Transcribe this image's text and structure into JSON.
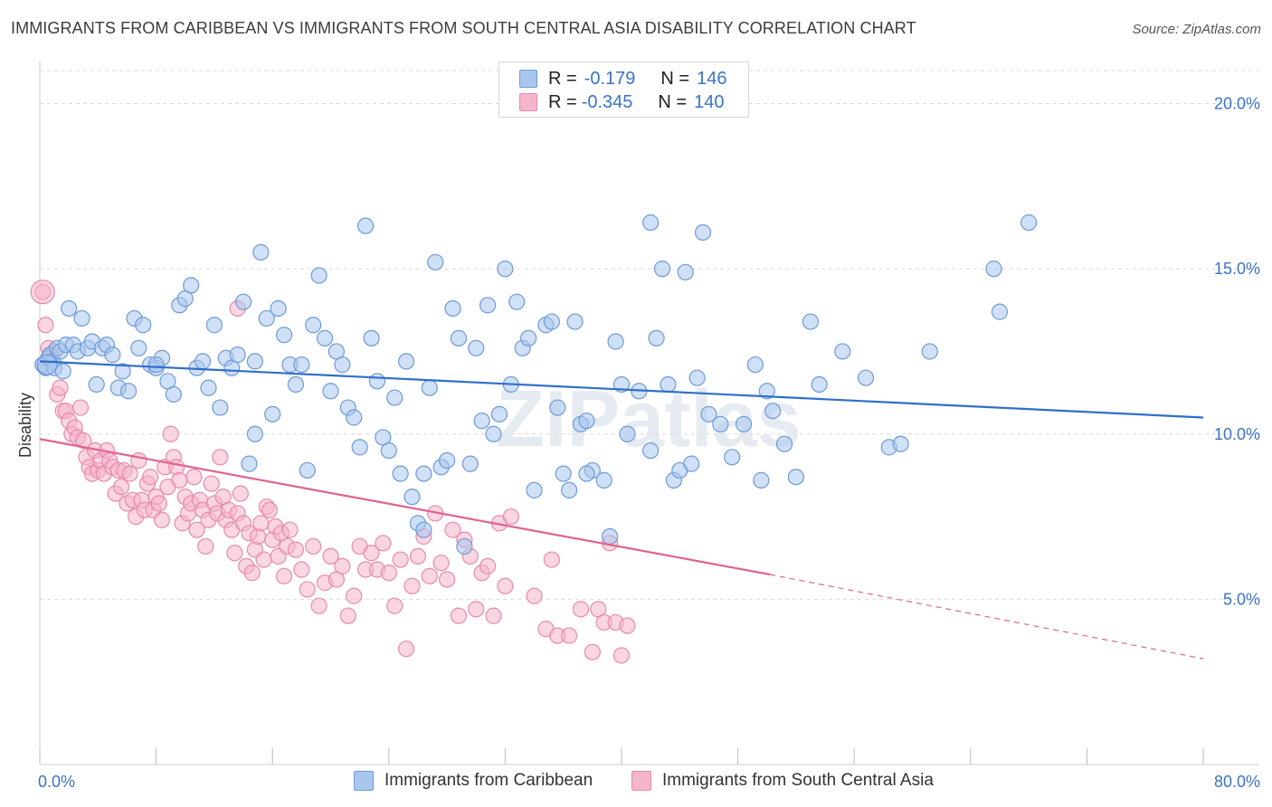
{
  "title": "IMMIGRANTS FROM CARIBBEAN VS IMMIGRANTS FROM SOUTH CENTRAL ASIA DISABILITY CORRELATION CHART",
  "source": "Source: ZipAtlas.com",
  "watermark": "ZIPatlas",
  "legend": {
    "rows": [
      {
        "r_label": "R =",
        "r_value": "-0.179",
        "n_label": "N =",
        "n_value": "146"
      },
      {
        "r_label": "R =",
        "r_value": "-0.345",
        "n_label": "N =",
        "n_value": "140"
      }
    ]
  },
  "bottom_legend": [
    "Immigrants from Caribbean",
    "Immigrants from South Central Asia"
  ],
  "colors": {
    "blue_fill": "#a9c7ee",
    "blue_stroke": "#6d9bd8",
    "blue_line": "#2f6fcb",
    "pink_fill": "#f5b5ca",
    "pink_stroke": "#e88aaa",
    "pink_line": "#e06390",
    "axis_text": "#3a72c9",
    "grid": "#d9d9d9"
  },
  "chart_data": {
    "type": "scatter",
    "title": "IMMIGRANTS FROM CARIBBEAN VS IMMIGRANTS FROM SOUTH CENTRAL ASIA DISABILITY CORRELATION CHART",
    "xlabel": "",
    "ylabel": "Disability",
    "xlim": [
      0,
      80
    ],
    "ylim": [
      0,
      21
    ],
    "x_tick_labels": [
      "0.0%",
      "80.0%"
    ],
    "y_ticks": [
      5,
      10,
      15,
      20
    ],
    "y_tick_labels": [
      "5.0%",
      "10.0%",
      "15.0%",
      "20.0%"
    ],
    "grid": true,
    "series": [
      {
        "name": "Immigrants from Caribbean",
        "r": -0.179,
        "n": 146,
        "trend": {
          "x0": 0,
          "y0": 12.2,
          "x1": 80,
          "y1": 10.5
        },
        "points": [
          [
            0.2,
            12.1
          ],
          [
            0.4,
            12.0
          ],
          [
            0.6,
            12.3
          ],
          [
            0.7,
            12.4
          ],
          [
            0.9,
            12.2
          ],
          [
            1.0,
            12.0
          ],
          [
            1.2,
            12.6
          ],
          [
            1.4,
            12.5
          ],
          [
            1.6,
            11.9
          ],
          [
            1.8,
            12.7
          ],
          [
            2.0,
            13.8
          ],
          [
            2.3,
            12.7
          ],
          [
            2.6,
            12.5
          ],
          [
            2.9,
            13.5
          ],
          [
            3.3,
            12.6
          ],
          [
            3.6,
            12.8
          ],
          [
            3.9,
            11.5
          ],
          [
            4.3,
            12.6
          ],
          [
            4.6,
            12.7
          ],
          [
            5.0,
            12.4
          ],
          [
            5.4,
            11.4
          ],
          [
            5.7,
            11.9
          ],
          [
            6.1,
            11.3
          ],
          [
            6.5,
            13.5
          ],
          [
            6.8,
            12.6
          ],
          [
            7.1,
            13.3
          ],
          [
            7.6,
            12.1
          ],
          [
            8.0,
            12.0
          ],
          [
            8.4,
            12.3
          ],
          [
            8.8,
            11.6
          ],
          [
            9.2,
            11.2
          ],
          [
            9.6,
            13.9
          ],
          [
            10.0,
            14.1
          ],
          [
            10.4,
            14.5
          ],
          [
            10.8,
            12.0
          ],
          [
            11.2,
            12.2
          ],
          [
            11.6,
            11.4
          ],
          [
            12.0,
            13.3
          ],
          [
            12.4,
            10.8
          ],
          [
            12.8,
            12.3
          ],
          [
            13.2,
            12.0
          ],
          [
            13.6,
            12.4
          ],
          [
            14.0,
            14.0
          ],
          [
            14.4,
            9.1
          ],
          [
            14.8,
            10.0
          ],
          [
            15.2,
            15.5
          ],
          [
            15.6,
            13.5
          ],
          [
            16.0,
            10.6
          ],
          [
            16.4,
            13.8
          ],
          [
            16.8,
            13.0
          ],
          [
            17.2,
            12.1
          ],
          [
            17.6,
            11.5
          ],
          [
            18.0,
            12.1
          ],
          [
            18.4,
            8.9
          ],
          [
            18.8,
            13.3
          ],
          [
            19.2,
            14.8
          ],
          [
            19.6,
            12.9
          ],
          [
            20.0,
            11.3
          ],
          [
            20.4,
            12.5
          ],
          [
            20.8,
            12.1
          ],
          [
            21.2,
            10.8
          ],
          [
            21.6,
            10.5
          ],
          [
            22.0,
            9.6
          ],
          [
            22.4,
            16.3
          ],
          [
            22.8,
            12.9
          ],
          [
            23.2,
            11.6
          ],
          [
            23.6,
            9.9
          ],
          [
            24.0,
            9.5
          ],
          [
            24.4,
            11.1
          ],
          [
            24.8,
            8.8
          ],
          [
            25.2,
            12.2
          ],
          [
            25.6,
            8.1
          ],
          [
            26.0,
            7.3
          ],
          [
            26.4,
            7.1
          ],
          [
            26.8,
            11.4
          ],
          [
            27.2,
            15.2
          ],
          [
            27.6,
            9.0
          ],
          [
            28.0,
            9.2
          ],
          [
            28.4,
            13.8
          ],
          [
            28.8,
            12.9
          ],
          [
            29.2,
            6.6
          ],
          [
            29.6,
            9.1
          ],
          [
            30.0,
            12.6
          ],
          [
            30.4,
            10.4
          ],
          [
            30.8,
            13.9
          ],
          [
            31.2,
            10.0
          ],
          [
            31.6,
            10.6
          ],
          [
            32.0,
            15.0
          ],
          [
            32.4,
            11.5
          ],
          [
            32.8,
            14.0
          ],
          [
            33.2,
            12.6
          ],
          [
            33.6,
            12.9
          ],
          [
            34.0,
            8.3
          ],
          [
            34.8,
            13.3
          ],
          [
            35.2,
            13.4
          ],
          [
            35.6,
            10.8
          ],
          [
            36.0,
            8.8
          ],
          [
            36.4,
            8.3
          ],
          [
            36.8,
            13.4
          ],
          [
            37.2,
            10.3
          ],
          [
            37.6,
            10.4
          ],
          [
            38.0,
            8.9
          ],
          [
            38.8,
            8.6
          ],
          [
            39.2,
            6.9
          ],
          [
            39.6,
            12.8
          ],
          [
            40.0,
            11.5
          ],
          [
            40.4,
            10.0
          ],
          [
            41.2,
            11.3
          ],
          [
            42.0,
            9.5
          ],
          [
            42.4,
            12.9
          ],
          [
            42.8,
            15.0
          ],
          [
            43.2,
            11.5
          ],
          [
            43.6,
            8.6
          ],
          [
            44.0,
            8.9
          ],
          [
            44.4,
            14.9
          ],
          [
            44.8,
            9.1
          ],
          [
            45.2,
            11.7
          ],
          [
            46.0,
            10.6
          ],
          [
            46.8,
            10.3
          ],
          [
            47.6,
            9.3
          ],
          [
            48.4,
            10.3
          ],
          [
            49.2,
            12.1
          ],
          [
            49.6,
            8.6
          ],
          [
            50.0,
            11.3
          ],
          [
            50.4,
            10.7
          ],
          [
            51.2,
            9.7
          ],
          [
            52.0,
            8.7
          ],
          [
            53.0,
            13.4
          ],
          [
            53.6,
            11.5
          ],
          [
            55.2,
            12.5
          ],
          [
            56.8,
            11.7
          ],
          [
            58.4,
            9.6
          ],
          [
            59.2,
            9.7
          ],
          [
            61.2,
            12.5
          ],
          [
            65.6,
            15.0
          ],
          [
            66.0,
            13.7
          ],
          [
            68.0,
            16.4
          ],
          [
            45.6,
            16.1
          ],
          [
            42.0,
            16.4
          ],
          [
            8.0,
            12.1
          ],
          [
            14.8,
            12.2
          ],
          [
            26.4,
            8.8
          ],
          [
            37.6,
            8.8
          ]
        ]
      },
      {
        "name": "Immigrants from South Central Asia",
        "r": -0.345,
        "n": 140,
        "trend": {
          "x0": 0,
          "y0": 9.85,
          "x1": 50.2,
          "y1": 5.75
        },
        "trend_dashed": {
          "x0": 50.2,
          "y0": 5.75,
          "x1": 80,
          "y1": 3.2
        },
        "points": [
          [
            0.2,
            14.3
          ],
          [
            0.4,
            13.3
          ],
          [
            0.6,
            12.6
          ],
          [
            0.8,
            12.4
          ],
          [
            1.0,
            12.5
          ],
          [
            1.2,
            11.2
          ],
          [
            1.4,
            11.4
          ],
          [
            1.6,
            10.7
          ],
          [
            1.8,
            10.7
          ],
          [
            2.0,
            10.4
          ],
          [
            2.2,
            10.0
          ],
          [
            2.4,
            10.2
          ],
          [
            2.6,
            9.9
          ],
          [
            2.8,
            10.8
          ],
          [
            3.0,
            9.8
          ],
          [
            3.2,
            9.3
          ],
          [
            3.4,
            9.0
          ],
          [
            3.6,
            8.8
          ],
          [
            3.8,
            9.5
          ],
          [
            4.0,
            8.9
          ],
          [
            4.2,
            9.2
          ],
          [
            4.4,
            8.8
          ],
          [
            4.6,
            9.5
          ],
          [
            4.8,
            9.2
          ],
          [
            5.0,
            9.0
          ],
          [
            5.2,
            8.2
          ],
          [
            5.4,
            8.9
          ],
          [
            5.6,
            8.4
          ],
          [
            5.8,
            8.9
          ],
          [
            6.0,
            7.9
          ],
          [
            6.2,
            8.8
          ],
          [
            6.4,
            8.0
          ],
          [
            6.6,
            7.5
          ],
          [
            6.8,
            9.2
          ],
          [
            7.0,
            8.0
          ],
          [
            7.2,
            7.7
          ],
          [
            7.4,
            8.5
          ],
          [
            7.6,
            8.7
          ],
          [
            7.8,
            7.7
          ],
          [
            8.0,
            8.1
          ],
          [
            8.2,
            7.9
          ],
          [
            8.4,
            7.4
          ],
          [
            8.6,
            9.0
          ],
          [
            8.8,
            8.4
          ],
          [
            9.0,
            10.0
          ],
          [
            9.2,
            9.3
          ],
          [
            9.4,
            9.0
          ],
          [
            9.6,
            8.6
          ],
          [
            9.8,
            7.3
          ],
          [
            10.0,
            8.1
          ],
          [
            10.2,
            7.6
          ],
          [
            10.4,
            7.9
          ],
          [
            10.6,
            8.7
          ],
          [
            10.8,
            7.1
          ],
          [
            11.0,
            8.0
          ],
          [
            11.2,
            7.7
          ],
          [
            11.4,
            6.6
          ],
          [
            11.6,
            7.4
          ],
          [
            11.8,
            8.5
          ],
          [
            12.0,
            7.9
          ],
          [
            12.2,
            7.6
          ],
          [
            12.4,
            9.3
          ],
          [
            12.6,
            8.1
          ],
          [
            12.8,
            7.4
          ],
          [
            13.0,
            7.7
          ],
          [
            13.2,
            7.1
          ],
          [
            13.4,
            6.4
          ],
          [
            13.6,
            7.6
          ],
          [
            13.8,
            8.2
          ],
          [
            14.0,
            7.3
          ],
          [
            14.2,
            6.0
          ],
          [
            14.4,
            7.0
          ],
          [
            14.6,
            5.8
          ],
          [
            14.8,
            6.5
          ],
          [
            15.0,
            6.9
          ],
          [
            15.2,
            7.3
          ],
          [
            15.4,
            6.2
          ],
          [
            15.6,
            7.8
          ],
          [
            15.8,
            7.7
          ],
          [
            16.0,
            6.8
          ],
          [
            16.2,
            7.2
          ],
          [
            16.4,
            6.3
          ],
          [
            16.6,
            7.0
          ],
          [
            16.8,
            5.7
          ],
          [
            17.0,
            6.6
          ],
          [
            17.2,
            7.1
          ],
          [
            17.6,
            6.5
          ],
          [
            18.0,
            5.9
          ],
          [
            18.4,
            5.3
          ],
          [
            18.8,
            6.6
          ],
          [
            19.2,
            4.8
          ],
          [
            19.6,
            5.5
          ],
          [
            20.0,
            6.3
          ],
          [
            20.4,
            5.6
          ],
          [
            20.8,
            6.0
          ],
          [
            21.2,
            4.5
          ],
          [
            21.6,
            5.1
          ],
          [
            22.0,
            6.6
          ],
          [
            22.4,
            5.9
          ],
          [
            22.8,
            6.4
          ],
          [
            23.2,
            5.9
          ],
          [
            23.6,
            6.7
          ],
          [
            24.0,
            5.8
          ],
          [
            24.4,
            4.8
          ],
          [
            24.8,
            6.2
          ],
          [
            25.2,
            3.5
          ],
          [
            25.6,
            5.4
          ],
          [
            26.0,
            6.3
          ],
          [
            26.4,
            6.9
          ],
          [
            26.8,
            5.7
          ],
          [
            27.2,
            7.6
          ],
          [
            27.6,
            6.1
          ],
          [
            28.0,
            5.6
          ],
          [
            28.4,
            7.1
          ],
          [
            28.8,
            4.5
          ],
          [
            29.2,
            6.8
          ],
          [
            29.6,
            6.3
          ],
          [
            30.0,
            4.7
          ],
          [
            30.4,
            5.8
          ],
          [
            30.8,
            6.0
          ],
          [
            31.2,
            4.5
          ],
          [
            31.6,
            7.3
          ],
          [
            32.0,
            5.4
          ],
          [
            32.4,
            7.5
          ],
          [
            34.0,
            5.1
          ],
          [
            34.8,
            4.1
          ],
          [
            35.6,
            3.9
          ],
          [
            36.4,
            3.9
          ],
          [
            37.2,
            4.7
          ],
          [
            38.0,
            3.4
          ],
          [
            38.4,
            4.7
          ],
          [
            38.8,
            4.3
          ],
          [
            39.2,
            6.7
          ],
          [
            39.6,
            4.3
          ],
          [
            40.0,
            3.3
          ],
          [
            40.4,
            4.2
          ],
          [
            35.2,
            6.2
          ],
          [
            13.6,
            13.8
          ]
        ]
      }
    ]
  }
}
